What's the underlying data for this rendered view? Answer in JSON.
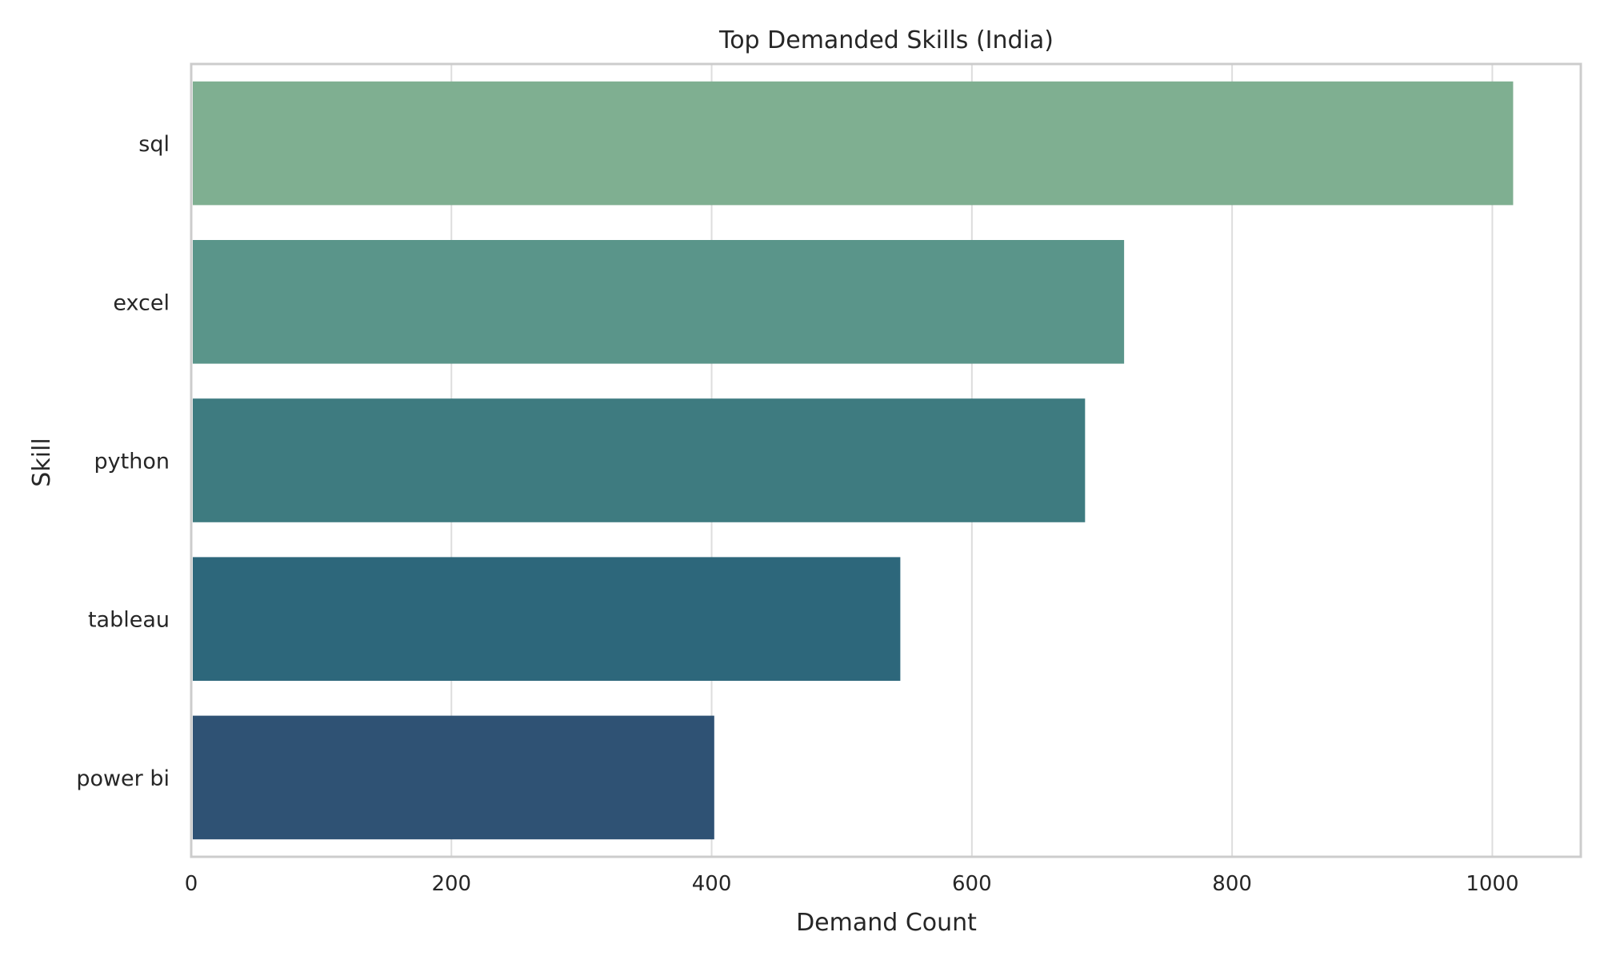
{
  "chart_data": {
    "type": "bar",
    "orientation": "horizontal",
    "title": "Top Demanded Skills (India)",
    "xlabel": "Demand Count",
    "ylabel": "Skill",
    "categories": [
      "sql",
      "excel",
      "python",
      "tableau",
      "power bi"
    ],
    "values": [
      1016,
      717,
      687,
      545,
      402
    ],
    "colors": [
      "#7faf91",
      "#5a958a",
      "#3e7b80",
      "#2d677b",
      "#2f5274"
    ],
    "xlim": [
      0,
      1068
    ],
    "xticks": [
      0,
      200,
      400,
      600,
      800,
      1000
    ],
    "grid": true
  }
}
